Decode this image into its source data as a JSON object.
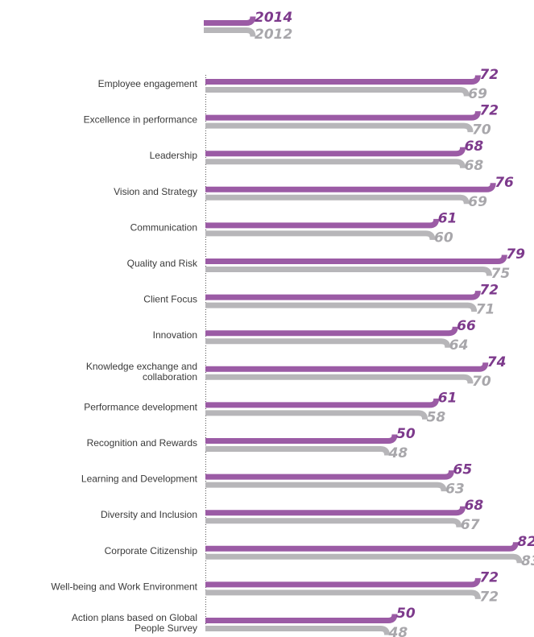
{
  "colors": {
    "series_2014": "#9b5ba5",
    "series_2012": "#b7b6b9",
    "label_2014": "#7d3a8c",
    "label_2012": "#a8a7ab",
    "axis": "#555555"
  },
  "chart_data": {
    "type": "bar",
    "orientation": "horizontal",
    "legend_position": "top-left",
    "grid": false,
    "xlim": [
      0,
      85
    ],
    "categories": [
      [
        "Employee engagement"
      ],
      [
        "Excellence in performance"
      ],
      [
        "Leadership"
      ],
      [
        "Vision and Strategy"
      ],
      [
        "Communication"
      ],
      [
        "Quality and Risk"
      ],
      [
        "Client Focus"
      ],
      [
        "Innovation"
      ],
      [
        "Knowledge exchange and",
        "collaboration"
      ],
      [
        "Performance development"
      ],
      [
        "Recognition and Rewards"
      ],
      [
        "Learning and Development"
      ],
      [
        "Diversity and Inclusion"
      ],
      [
        "Corporate Citizenship"
      ],
      [
        "Well-being and Work Environment"
      ],
      [
        "Action plans based on Global",
        "People Survey"
      ]
    ],
    "series": [
      {
        "name": "2014",
        "values": [
          72,
          72,
          68,
          76,
          61,
          79,
          72,
          66,
          74,
          61,
          50,
          65,
          68,
          82,
          72,
          50
        ]
      },
      {
        "name": "2012",
        "values": [
          69,
          70,
          68,
          69,
          60,
          75,
          71,
          64,
          70,
          58,
          48,
          63,
          67,
          83,
          72,
          48
        ]
      }
    ]
  }
}
